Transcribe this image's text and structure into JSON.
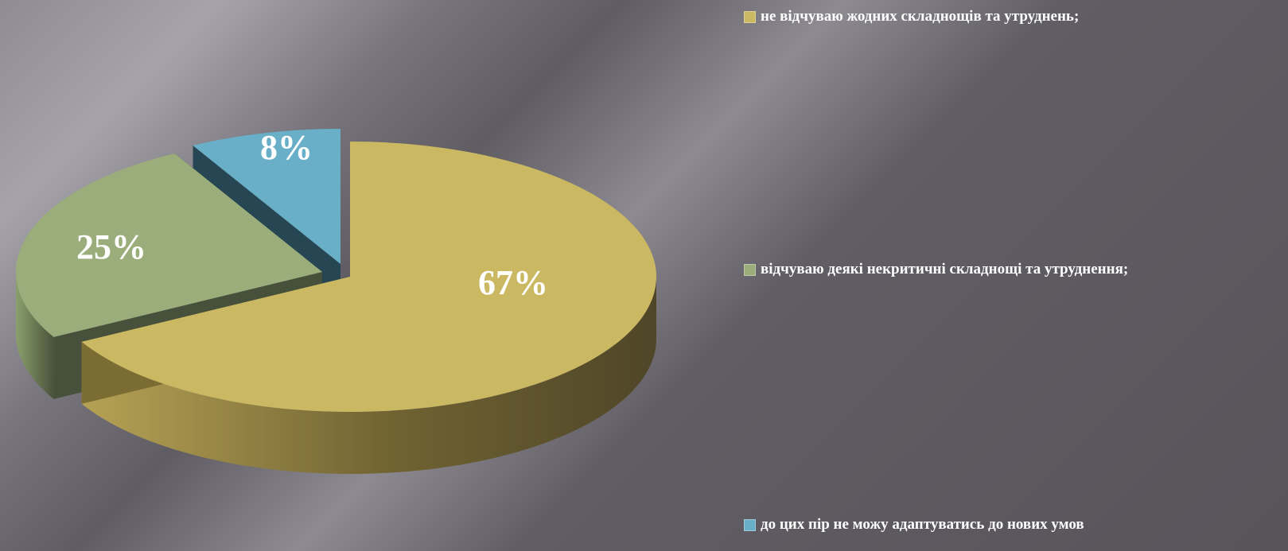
{
  "chart_data": {
    "type": "pie",
    "style": "3d-exploded",
    "slices": [
      {
        "label": "не відчуваю жодних складнощів та утруднень;",
        "value": 67,
        "display": "67%",
        "color": "#cbb862",
        "side_color": "#7a6c33"
      },
      {
        "label": "відчуваю деякі некритичні складнощі та утруднення;",
        "value": 25,
        "display": "25%",
        "color": "#9aad7b",
        "side_color": "#46503a"
      },
      {
        "label": "до цих пір не можу адаптуватись до нових умов",
        "value": 8,
        "display": "8%",
        "color": "#69afc8",
        "side_color": "#264653"
      }
    ],
    "legend_position": "right"
  }
}
